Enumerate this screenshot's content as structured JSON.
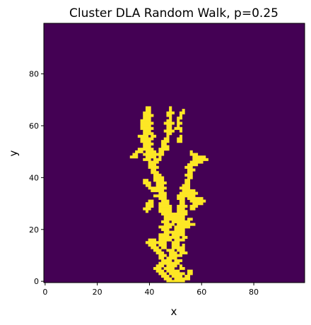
{
  "chart_data": {
    "type": "heatmap",
    "title": "Cluster DLA Random Walk, p=0.25",
    "xlabel": "x",
    "ylabel": "y",
    "grid_size": [
      100,
      100
    ],
    "xlim": [
      -0.5,
      99.5
    ],
    "ylim": [
      99.5,
      -0.5
    ],
    "x_ticks": [
      0,
      20,
      40,
      60,
      80
    ],
    "y_ticks": [
      0,
      20,
      40,
      60,
      80
    ],
    "grid": false,
    "colormap": "viridis",
    "colors": {
      "background": "#440154",
      "cluster": "#fde725"
    },
    "cluster_row_spans": [
      [
        32,
        [
          [
            39,
            40
          ],
          [
            48,
            48
          ]
        ]
      ],
      [
        33,
        [
          [
            39,
            40
          ],
          [
            48,
            48
          ],
          [
            53,
            53
          ]
        ]
      ],
      [
        34,
        [
          [
            38,
            40
          ],
          [
            47,
            49
          ],
          [
            52,
            53
          ]
        ]
      ],
      [
        35,
        [
          [
            38,
            41
          ],
          [
            47,
            48
          ],
          [
            52,
            52
          ]
        ]
      ],
      [
        36,
        [
          [
            38,
            40
          ],
          [
            48,
            48
          ],
          [
            51,
            52
          ]
        ]
      ],
      [
        37,
        [
          [
            37,
            40
          ],
          [
            47,
            48
          ],
          [
            51,
            51
          ]
        ]
      ],
      [
        38,
        [
          [
            37,
            41
          ],
          [
            46,
            49
          ],
          [
            51,
            52
          ]
        ]
      ],
      [
        39,
        [
          [
            37,
            40
          ],
          [
            47,
            48
          ],
          [
            51,
            51
          ]
        ]
      ],
      [
        40,
        [
          [
            37,
            41
          ],
          [
            47,
            48
          ],
          [
            50,
            52
          ]
        ]
      ],
      [
        41,
        [
          [
            38,
            40
          ],
          [
            46,
            49
          ],
          [
            52,
            52
          ]
        ]
      ],
      [
        42,
        [
          [
            38,
            41
          ],
          [
            47,
            48
          ]
        ]
      ],
      [
        43,
        [
          [
            36,
            39
          ],
          [
            41,
            42
          ],
          [
            47,
            47
          ],
          [
            52,
            52
          ]
        ]
      ],
      [
        44,
        [
          [
            37,
            41
          ],
          [
            46,
            47
          ],
          [
            51,
            52
          ]
        ]
      ],
      [
        45,
        [
          [
            37,
            40
          ],
          [
            45,
            47
          ],
          [
            51,
            52
          ]
        ]
      ],
      [
        46,
        [
          [
            38,
            41
          ],
          [
            45,
            46
          ]
        ]
      ],
      [
        47,
        [
          [
            38,
            40
          ],
          [
            45,
            47
          ]
        ]
      ],
      [
        48,
        [
          [
            36,
            41
          ],
          [
            44,
            47
          ]
        ]
      ],
      [
        49,
        [
          [
            35,
            37
          ],
          [
            39,
            42
          ],
          [
            44,
            45
          ],
          [
            56,
            56
          ]
        ]
      ],
      [
        50,
        [
          [
            34,
            35
          ],
          [
            38,
            43
          ],
          [
            44,
            45
          ],
          [
            56,
            58
          ]
        ]
      ],
      [
        51,
        [
          [
            33,
            35
          ],
          [
            39,
            42
          ],
          [
            44,
            44
          ],
          [
            57,
            61
          ]
        ]
      ],
      [
        52,
        [
          [
            38,
            40
          ],
          [
            42,
            44
          ],
          [
            57,
            62
          ]
        ]
      ],
      [
        53,
        [
          [
            40,
            43
          ],
          [
            56,
            60
          ]
        ]
      ],
      [
        54,
        [
          [
            40,
            42
          ],
          [
            55,
            58
          ]
        ]
      ],
      [
        55,
        [
          [
            40,
            43
          ],
          [
            54,
            56
          ]
        ]
      ],
      [
        56,
        [
          [
            41,
            42
          ],
          [
            55,
            57
          ]
        ]
      ],
      [
        57,
        [
          [
            41,
            43
          ],
          [
            55,
            56
          ]
        ]
      ],
      [
        58,
        [
          [
            42,
            44
          ],
          [
            54,
            56
          ]
        ]
      ],
      [
        59,
        [
          [
            42,
            45
          ],
          [
            55,
            56
          ]
        ]
      ],
      [
        60,
        [
          [
            38,
            39
          ],
          [
            42,
            45
          ],
          [
            54,
            55
          ]
        ]
      ],
      [
        61,
        [
          [
            38,
            40
          ],
          [
            43,
            46
          ],
          [
            54,
            55
          ]
        ]
      ],
      [
        62,
        [
          [
            39,
            40
          ],
          [
            43,
            45
          ],
          [
            53,
            55
          ]
        ]
      ],
      [
        63,
        [
          [
            40,
            42
          ],
          [
            43,
            46
          ],
          [
            52,
            55
          ]
        ]
      ],
      [
        64,
        [
          [
            41,
            45
          ],
          [
            53,
            57
          ]
        ]
      ],
      [
        65,
        [
          [
            44,
            46
          ],
          [
            52,
            58
          ]
        ]
      ],
      [
        66,
        [
          [
            42,
            46
          ],
          [
            51,
            57
          ]
        ]
      ],
      [
        67,
        [
          [
            44,
            46
          ],
          [
            51,
            53
          ],
          [
            55,
            60
          ]
        ]
      ],
      [
        68,
        [
          [
            40,
            41
          ],
          [
            45,
            47
          ],
          [
            52,
            53
          ],
          [
            56,
            61
          ]
        ]
      ],
      [
        69,
        [
          [
            39,
            41
          ],
          [
            44,
            47
          ],
          [
            52,
            53
          ],
          [
            57,
            60
          ]
        ]
      ],
      [
        70,
        [
          [
            39,
            41
          ],
          [
            44,
            48
          ],
          [
            51,
            54
          ],
          [
            56,
            58
          ]
        ]
      ],
      [
        71,
        [
          [
            38,
            40
          ],
          [
            44,
            48
          ],
          [
            51,
            53
          ],
          [
            56,
            57
          ]
        ]
      ],
      [
        72,
        [
          [
            39,
            39
          ],
          [
            44,
            48
          ],
          [
            51,
            54
          ]
        ]
      ],
      [
        73,
        [
          [
            45,
            49
          ],
          [
            50,
            54
          ]
        ]
      ],
      [
        74,
        [
          [
            46,
            53
          ]
        ]
      ],
      [
        75,
        [
          [
            46,
            48
          ],
          [
            49,
            53
          ],
          [
            55,
            56
          ]
        ]
      ],
      [
        76,
        [
          [
            45,
            47
          ],
          [
            49,
            55
          ]
        ]
      ],
      [
        77,
        [
          [
            46,
            49
          ],
          [
            51,
            57
          ]
        ]
      ],
      [
        78,
        [
          [
            44,
            48
          ],
          [
            50,
            55
          ]
        ]
      ],
      [
        79,
        [
          [
            45,
            47
          ],
          [
            50,
            53
          ]
        ]
      ],
      [
        80,
        [
          [
            46,
            50
          ],
          [
            51,
            53
          ]
        ]
      ],
      [
        81,
        [
          [
            44,
            47
          ],
          [
            49,
            53
          ]
        ]
      ],
      [
        82,
        [
          [
            44,
            47
          ],
          [
            48,
            51
          ],
          [
            53,
            54
          ]
        ]
      ],
      [
        83,
        [
          [
            40,
            42
          ],
          [
            44,
            48
          ],
          [
            50,
            53
          ]
        ]
      ],
      [
        84,
        [
          [
            39,
            46
          ],
          [
            49,
            51
          ]
        ]
      ],
      [
        85,
        [
          [
            40,
            42
          ],
          [
            44,
            46
          ],
          [
            49,
            51
          ],
          [
            53,
            53
          ]
        ]
      ],
      [
        86,
        [
          [
            41,
            43
          ],
          [
            45,
            46
          ],
          [
            49,
            53
          ]
        ]
      ],
      [
        87,
        [
          [
            42,
            44
          ],
          [
            47,
            49
          ],
          [
            51,
            53
          ]
        ]
      ],
      [
        88,
        [
          [
            43,
            45
          ],
          [
            48,
            50
          ],
          [
            52,
            54
          ]
        ]
      ],
      [
        89,
        [
          [
            44,
            46
          ],
          [
            48,
            52
          ]
        ]
      ],
      [
        90,
        [
          [
            44,
            45
          ],
          [
            47,
            50
          ]
        ]
      ],
      [
        91,
        [
          [
            45,
            48
          ],
          [
            50,
            52
          ]
        ]
      ],
      [
        92,
        [
          [
            44,
            48
          ],
          [
            49,
            51
          ]
        ]
      ],
      [
        93,
        [
          [
            43,
            45
          ],
          [
            47,
            50
          ],
          [
            52,
            52
          ]
        ]
      ],
      [
        94,
        [
          [
            42,
            44
          ],
          [
            46,
            49
          ],
          [
            52,
            53
          ]
        ]
      ],
      [
        95,
        [
          [
            43,
            45
          ],
          [
            47,
            51
          ],
          [
            55,
            56
          ]
        ]
      ],
      [
        96,
        [
          [
            44,
            46
          ],
          [
            48,
            53
          ],
          [
            55,
            56
          ]
        ]
      ],
      [
        97,
        [
          [
            45,
            47
          ],
          [
            49,
            52
          ],
          [
            54,
            55
          ]
        ]
      ],
      [
        98,
        [
          [
            46,
            48
          ],
          [
            50,
            55
          ]
        ]
      ],
      [
        99,
        [
          [
            47,
            49
          ],
          [
            50,
            53
          ]
        ]
      ]
    ]
  }
}
